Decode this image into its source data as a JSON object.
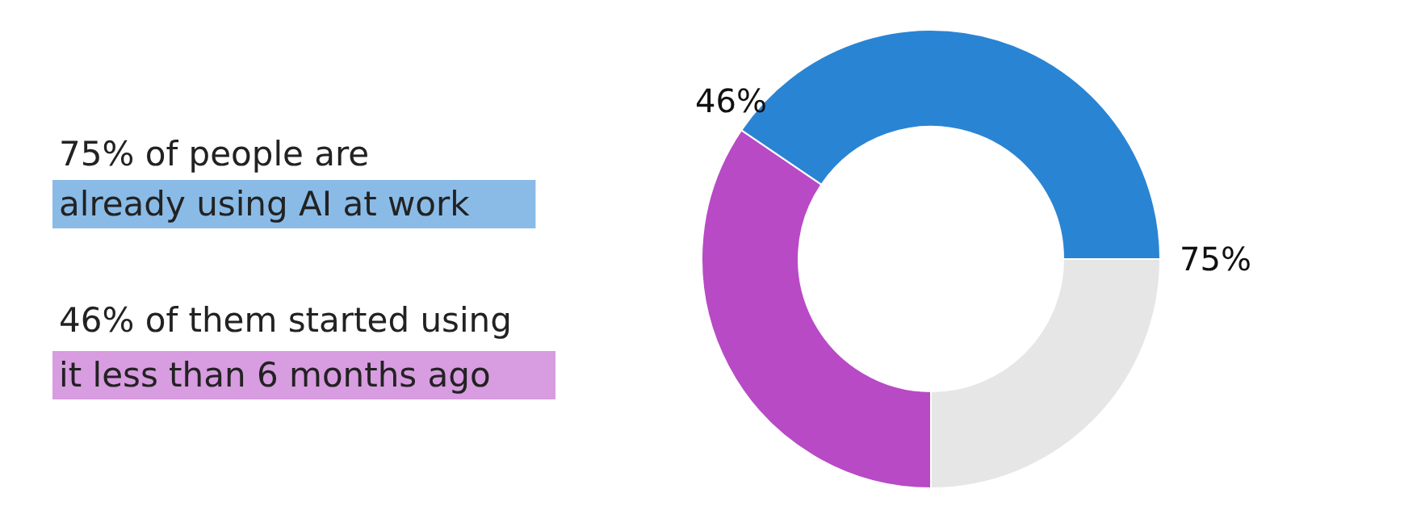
{
  "chart_data": {
    "type": "donut",
    "categories": [
      null,
      null,
      null
    ],
    "values": [
      40.5,
      34.5,
      25
    ],
    "colors": [
      "#2a84d4",
      "#b84ac6",
      "#e6e6e6"
    ],
    "annotations": [
      "75% of people are",
      "already using AI at work",
      "46% of them started using",
      "it less than 6 months ago",
      "46%",
      "75%"
    ]
  }
}
